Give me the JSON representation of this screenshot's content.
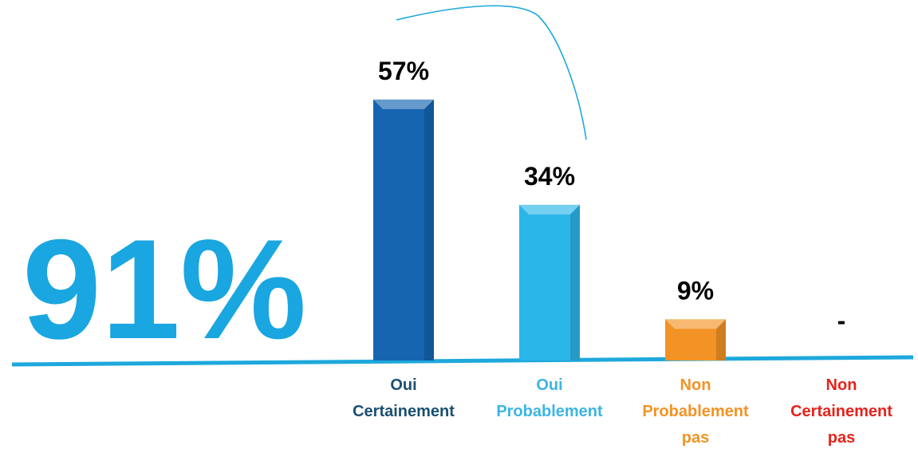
{
  "chart_data": {
    "type": "bar",
    "annotation": "91%",
    "categories": [
      "Oui Certainement",
      "Oui Probablement",
      "Non Probablement pas",
      "Non Certainement pas"
    ],
    "values": [
      57,
      34,
      9,
      null
    ],
    "value_labels": [
      "57%",
      "34%",
      "9%",
      "-"
    ],
    "colors": [
      "#1565b0",
      "#2bb6ea",
      "#f39325",
      "#e5231b"
    ],
    "label_colors": [
      "#1b4f72",
      "#3db4e5",
      "#f39325",
      "#e5231b"
    ]
  }
}
